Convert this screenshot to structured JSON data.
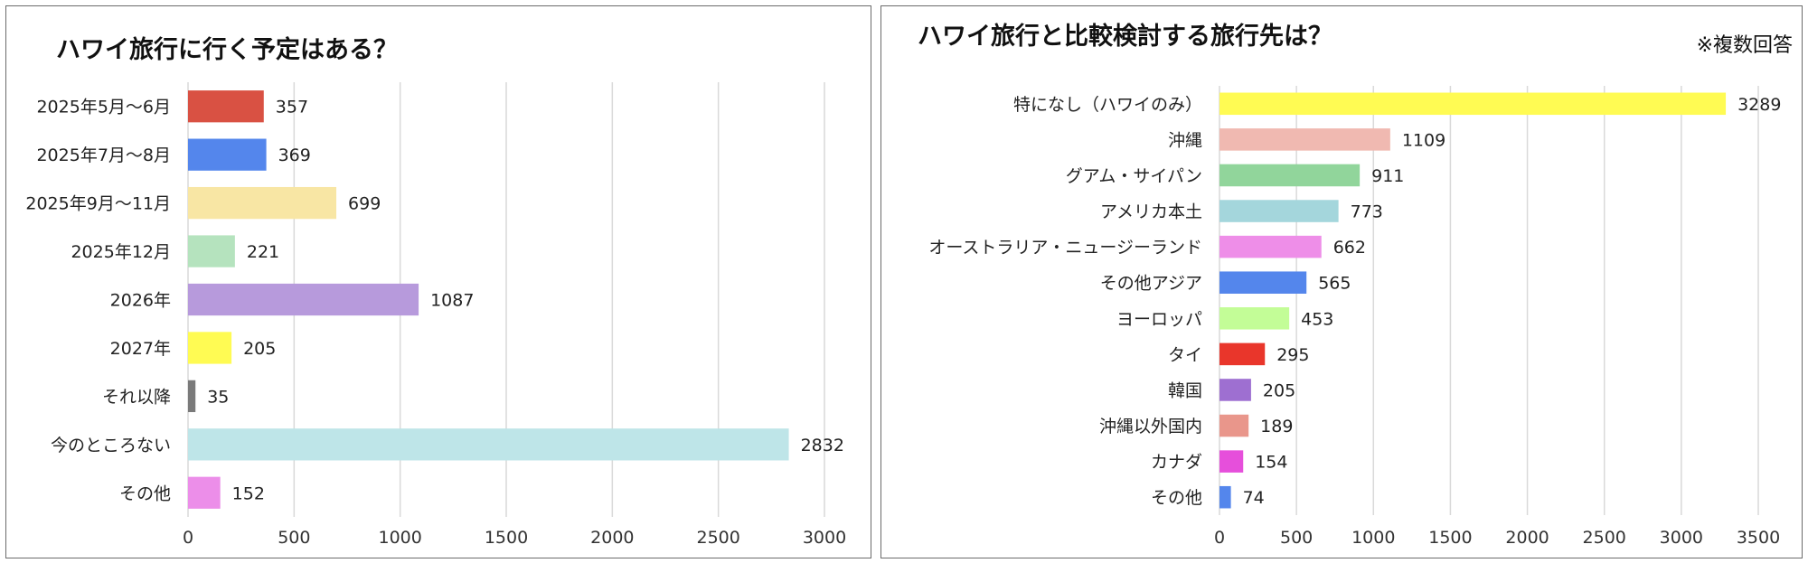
{
  "chart_data": [
    {
      "type": "bar",
      "orientation": "horizontal",
      "title": "ハワイ旅行に行く予定はある？",
      "categories": [
        "2025年5月～6月",
        "2025年7月～8月",
        "2025年9月～11月",
        "2025年12月",
        "2026年",
        "2027年",
        "それ以降",
        "今のところない",
        "その他"
      ],
      "values": [
        357,
        369,
        699,
        221,
        1087,
        205,
        35,
        2832,
        152
      ],
      "colors": [
        "#d95143",
        "#5486ec",
        "#f8e6a4",
        "#b5e3be",
        "#b79adc",
        "#fffb53",
        "#7a7a7a",
        "#bee5e8",
        "#ec8ee9"
      ],
      "xlim": [
        0,
        3000
      ],
      "xticks": [
        0,
        500,
        1000,
        1500,
        2000,
        2500,
        3000
      ],
      "grid": true,
      "legend": "none"
    },
    {
      "type": "bar",
      "orientation": "horizontal",
      "title": "ハワイ旅行と比較検討する旅行先は？",
      "note": "※複数回答",
      "categories": [
        "特になし（ハワイのみ）",
        "沖縄",
        "グアム・サイパン",
        "アメリカ本土",
        "オーストラリア・ニュージーランド",
        "その他アジア",
        "ヨーロッパ",
        "タイ",
        "韓国",
        "沖縄以外国内",
        "カナダ",
        "その他"
      ],
      "values": [
        3289,
        1109,
        911,
        773,
        662,
        565,
        453,
        295,
        205,
        189,
        154,
        74
      ],
      "colors": [
        "#fffb53",
        "#f0b9b1",
        "#91d59b",
        "#a4d6dc",
        "#ee8ee8",
        "#5486ec",
        "#c3fd97",
        "#e9362b",
        "#9e6fd1",
        "#e9968b",
        "#e64fdb",
        "#5486ec"
      ],
      "xlim": [
        0,
        3500
      ],
      "xticks": [
        0,
        500,
        1000,
        1500,
        2000,
        2500,
        3000,
        3500
      ],
      "grid": true,
      "legend": "none"
    }
  ]
}
